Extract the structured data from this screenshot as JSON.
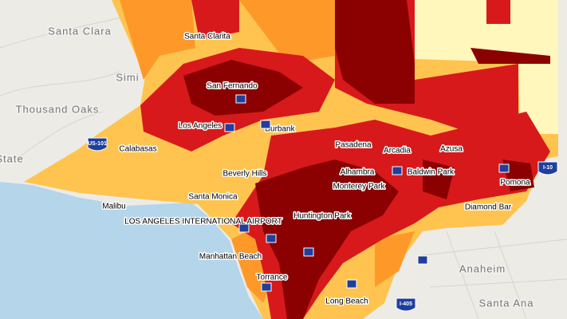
{
  "map": {
    "places": [
      "Santa Clarita",
      "San Fernando",
      "Los Angeles",
      "Burbank",
      "Calabasas",
      "Pasadena",
      "Arcadia",
      "Azusa",
      "Beverly Hills",
      "Alhambra",
      "Baldwin Park",
      "Pomona",
      "Santa Monica",
      "Monterey Park",
      "Malibu",
      "Diamond Bar",
      "LOS ANGELES INTERNATIONAL AIRPORT",
      "Huntington Park",
      "Manhattan Beach",
      "Torrance",
      "Long Beach"
    ],
    "basemap_labels": [
      "Simi",
      "Thousand Oaks",
      "Anaheim",
      "Santa Ana",
      "Santa Clara",
      "State"
    ],
    "shields": [
      "US-101",
      "I-10",
      "I-405"
    ]
  }
}
